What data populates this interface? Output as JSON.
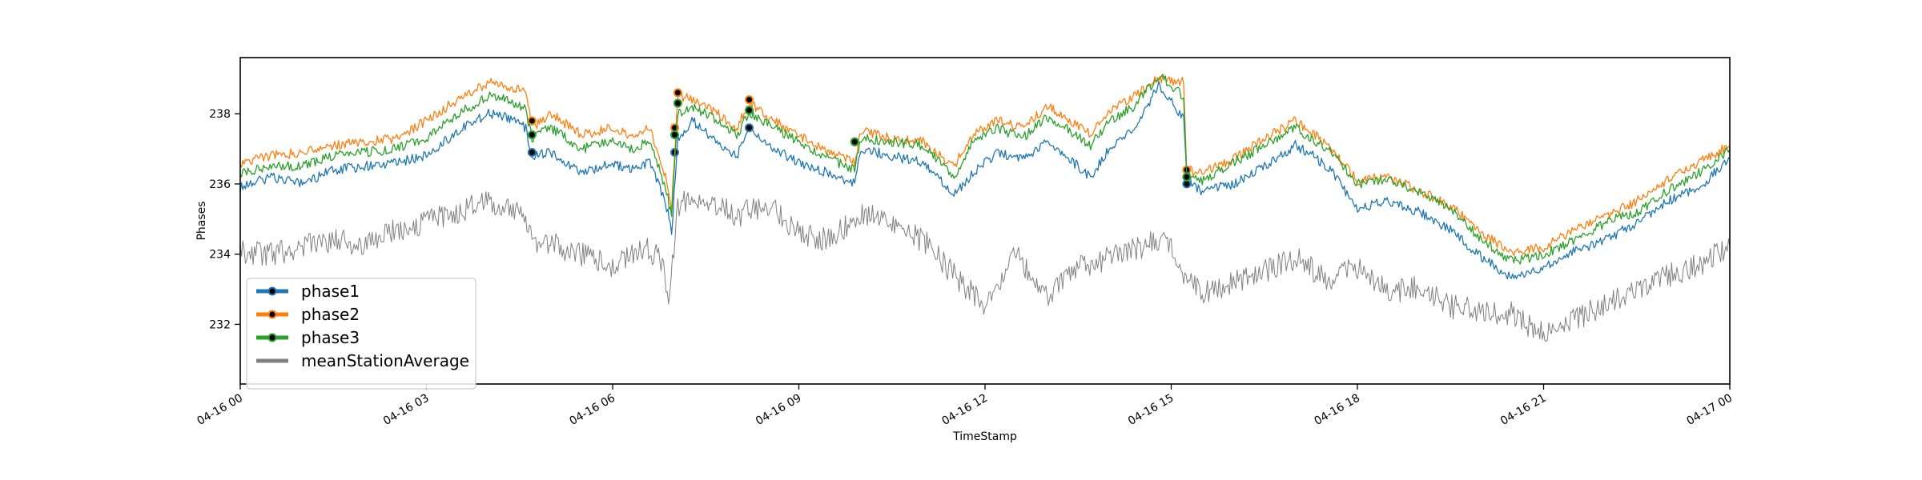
{
  "chart_data": {
    "type": "line",
    "title": "",
    "xlabel": "TimeStamp",
    "ylabel": "Phases",
    "x_range": [
      "2024-04-16 00:00",
      "2024-04-17 00:00"
    ],
    "ylim": [
      230.3,
      239.6
    ],
    "x_ticks": [
      "04-16 00",
      "04-16 03",
      "04-16 06",
      "04-16 09",
      "04-16 12",
      "04-16 15",
      "04-16 18",
      "04-16 21",
      "04-17 00"
    ],
    "y_ticks": [
      232,
      234,
      236,
      238
    ],
    "grid": false,
    "legend_position": "lower-left",
    "series": [
      {
        "name": "phase1",
        "color": "#1f77b4",
        "marker": "dot",
        "points": [
          [
            0.0,
            235.9
          ],
          [
            0.5,
            236.2
          ],
          [
            1.0,
            236.0
          ],
          [
            1.5,
            236.4
          ],
          [
            2.0,
            236.5
          ],
          [
            2.5,
            236.6
          ],
          [
            3.0,
            236.8
          ],
          [
            3.5,
            237.5
          ],
          [
            4.0,
            238.0
          ],
          [
            4.3,
            237.9
          ],
          [
            4.6,
            237.6
          ],
          [
            4.7,
            236.8
          ],
          [
            5.0,
            236.9
          ],
          [
            5.5,
            236.3
          ],
          [
            6.0,
            236.6
          ],
          [
            6.3,
            236.4
          ],
          [
            6.6,
            236.6
          ],
          [
            6.85,
            235.5
          ],
          [
            6.95,
            234.6
          ],
          [
            7.05,
            237.3
          ],
          [
            7.3,
            237.8
          ],
          [
            7.6,
            237.3
          ],
          [
            8.0,
            236.8
          ],
          [
            8.2,
            237.5
          ],
          [
            8.6,
            237.0
          ],
          [
            9.0,
            236.6
          ],
          [
            9.5,
            236.3
          ],
          [
            9.9,
            236.0
          ],
          [
            10.0,
            237.0
          ],
          [
            10.5,
            236.8
          ],
          [
            11.0,
            236.6
          ],
          [
            11.5,
            235.7
          ],
          [
            11.8,
            236.3
          ],
          [
            12.2,
            236.9
          ],
          [
            12.6,
            236.7
          ],
          [
            13.0,
            237.2
          ],
          [
            13.3,
            236.8
          ],
          [
            13.7,
            236.2
          ],
          [
            14.0,
            237.0
          ],
          [
            14.4,
            237.6
          ],
          [
            14.8,
            238.8
          ],
          [
            15.2,
            237.9
          ],
          [
            15.25,
            236.1
          ],
          [
            15.5,
            235.8
          ],
          [
            16.0,
            236.0
          ],
          [
            16.5,
            236.5
          ],
          [
            17.0,
            237.1
          ],
          [
            17.3,
            236.8
          ],
          [
            17.6,
            236.3
          ],
          [
            18.0,
            235.3
          ],
          [
            18.5,
            235.5
          ],
          [
            19.0,
            235.2
          ],
          [
            19.5,
            234.7
          ],
          [
            20.0,
            233.9
          ],
          [
            20.5,
            233.3
          ],
          [
            21.0,
            233.6
          ],
          [
            21.5,
            234.1
          ],
          [
            22.0,
            234.4
          ],
          [
            22.5,
            234.9
          ],
          [
            23.0,
            235.5
          ],
          [
            23.5,
            235.9
          ],
          [
            24.0,
            236.7
          ]
        ],
        "markers": [
          [
            4.7,
            236.9
          ],
          [
            7.0,
            236.9
          ],
          [
            8.2,
            237.6
          ],
          [
            9.9,
            237.2
          ],
          [
            15.25,
            236.0
          ]
        ]
      },
      {
        "name": "phase2",
        "color": "#ff7f0e",
        "marker": "dot",
        "points": [
          [
            0.0,
            236.6
          ],
          [
            0.5,
            236.8
          ],
          [
            1.0,
            236.9
          ],
          [
            1.5,
            237.1
          ],
          [
            2.0,
            237.2
          ],
          [
            2.5,
            237.3
          ],
          [
            3.0,
            237.8
          ],
          [
            3.5,
            238.4
          ],
          [
            4.0,
            238.9
          ],
          [
            4.3,
            238.8
          ],
          [
            4.6,
            238.6
          ],
          [
            4.7,
            237.6
          ],
          [
            5.0,
            238.0
          ],
          [
            5.5,
            237.4
          ],
          [
            6.0,
            237.6
          ],
          [
            6.3,
            237.4
          ],
          [
            6.6,
            237.6
          ],
          [
            6.85,
            236.2
          ],
          [
            6.95,
            235.3
          ],
          [
            7.05,
            238.5
          ],
          [
            7.3,
            238.4
          ],
          [
            7.6,
            238.1
          ],
          [
            8.0,
            237.6
          ],
          [
            8.2,
            238.3
          ],
          [
            8.6,
            237.8
          ],
          [
            9.0,
            237.4
          ],
          [
            9.5,
            236.9
          ],
          [
            9.9,
            236.6
          ],
          [
            10.0,
            237.5
          ],
          [
            10.5,
            237.3
          ],
          [
            11.0,
            237.2
          ],
          [
            11.5,
            236.5
          ],
          [
            11.8,
            237.4
          ],
          [
            12.2,
            237.8
          ],
          [
            12.6,
            237.6
          ],
          [
            13.0,
            238.2
          ],
          [
            13.3,
            237.9
          ],
          [
            13.7,
            237.4
          ],
          [
            14.0,
            238.1
          ],
          [
            14.4,
            238.5
          ],
          [
            14.8,
            239.0
          ],
          [
            15.2,
            238.9
          ],
          [
            15.25,
            236.4
          ],
          [
            15.5,
            236.3
          ],
          [
            16.0,
            236.7
          ],
          [
            16.5,
            237.3
          ],
          [
            17.0,
            237.8
          ],
          [
            17.3,
            237.4
          ],
          [
            17.6,
            237.0
          ],
          [
            18.0,
            236.1
          ],
          [
            18.5,
            236.2
          ],
          [
            19.0,
            235.8
          ],
          [
            19.5,
            235.4
          ],
          [
            20.0,
            234.6
          ],
          [
            20.5,
            234.0
          ],
          [
            21.0,
            234.2
          ],
          [
            21.5,
            234.7
          ],
          [
            22.0,
            235.1
          ],
          [
            22.5,
            235.5
          ],
          [
            23.0,
            236.1
          ],
          [
            23.5,
            236.6
          ],
          [
            24.0,
            237.1
          ]
        ],
        "markers": [
          [
            4.7,
            237.8
          ],
          [
            7.0,
            237.6
          ],
          [
            7.05,
            238.6
          ],
          [
            8.2,
            238.4
          ],
          [
            15.25,
            236.4
          ]
        ]
      },
      {
        "name": "phase3",
        "color": "#2ca02c",
        "marker": "dot",
        "points": [
          [
            0.0,
            236.3
          ],
          [
            0.5,
            236.5
          ],
          [
            1.0,
            236.5
          ],
          [
            1.5,
            236.8
          ],
          [
            2.0,
            236.9
          ],
          [
            2.5,
            237.0
          ],
          [
            3.0,
            237.3
          ],
          [
            3.5,
            238.0
          ],
          [
            4.0,
            238.5
          ],
          [
            4.3,
            238.4
          ],
          [
            4.6,
            238.1
          ],
          [
            4.7,
            237.3
          ],
          [
            5.0,
            237.6
          ],
          [
            5.5,
            237.0
          ],
          [
            6.0,
            237.2
          ],
          [
            6.3,
            237.0
          ],
          [
            6.6,
            237.2
          ],
          [
            6.85,
            235.9
          ],
          [
            6.95,
            235.1
          ],
          [
            7.05,
            238.0
          ],
          [
            7.3,
            238.2
          ],
          [
            7.6,
            237.9
          ],
          [
            8.0,
            237.4
          ],
          [
            8.2,
            238.0
          ],
          [
            8.6,
            237.6
          ],
          [
            9.0,
            237.2
          ],
          [
            9.5,
            236.7
          ],
          [
            9.9,
            236.4
          ],
          [
            10.0,
            237.3
          ],
          [
            10.5,
            237.2
          ],
          [
            11.0,
            237.1
          ],
          [
            11.5,
            236.2
          ],
          [
            11.8,
            237.2
          ],
          [
            12.2,
            237.6
          ],
          [
            12.6,
            237.3
          ],
          [
            13.0,
            237.9
          ],
          [
            13.3,
            237.6
          ],
          [
            13.7,
            237.1
          ],
          [
            14.0,
            237.8
          ],
          [
            14.4,
            238.2
          ],
          [
            14.8,
            239.1
          ],
          [
            15.2,
            238.5
          ],
          [
            15.25,
            236.3
          ],
          [
            15.5,
            236.1
          ],
          [
            16.0,
            236.6
          ],
          [
            16.5,
            237.1
          ],
          [
            17.0,
            237.6
          ],
          [
            17.3,
            237.2
          ],
          [
            17.6,
            236.9
          ],
          [
            18.0,
            236.0
          ],
          [
            18.5,
            236.1
          ],
          [
            19.0,
            235.8
          ],
          [
            19.5,
            235.3
          ],
          [
            20.0,
            234.4
          ],
          [
            20.5,
            233.8
          ],
          [
            21.0,
            234.0
          ],
          [
            21.5,
            234.4
          ],
          [
            22.0,
            234.9
          ],
          [
            22.5,
            235.2
          ],
          [
            23.0,
            235.8
          ],
          [
            23.5,
            236.3
          ],
          [
            24.0,
            237.0
          ]
        ],
        "markers": [
          [
            4.7,
            237.4
          ],
          [
            7.0,
            237.4
          ],
          [
            7.05,
            238.3
          ],
          [
            8.2,
            238.1
          ],
          [
            9.9,
            237.2
          ],
          [
            15.25,
            236.2
          ]
        ]
      },
      {
        "name": "meanStationAverage",
        "color": "#808080",
        "marker": "none",
        "points": [
          [
            0.0,
            234.1
          ],
          [
            0.5,
            234.0
          ],
          [
            1.0,
            234.2
          ],
          [
            1.5,
            234.4
          ],
          [
            2.0,
            234.3
          ],
          [
            2.5,
            234.7
          ],
          [
            3.0,
            234.9
          ],
          [
            3.5,
            235.2
          ],
          [
            4.0,
            235.5
          ],
          [
            4.5,
            235.3
          ],
          [
            4.7,
            234.4
          ],
          [
            5.0,
            234.3
          ],
          [
            5.5,
            234.0
          ],
          [
            6.0,
            233.6
          ],
          [
            6.5,
            234.2
          ],
          [
            6.8,
            233.8
          ],
          [
            6.9,
            232.5
          ],
          [
            7.05,
            235.4
          ],
          [
            7.5,
            235.6
          ],
          [
            8.0,
            235.1
          ],
          [
            8.5,
            235.4
          ],
          [
            9.0,
            234.6
          ],
          [
            9.5,
            234.4
          ],
          [
            10.0,
            235.2
          ],
          [
            10.5,
            234.9
          ],
          [
            11.0,
            234.4
          ],
          [
            11.5,
            233.4
          ],
          [
            12.0,
            232.5
          ],
          [
            12.5,
            234.0
          ],
          [
            13.0,
            232.8
          ],
          [
            13.5,
            233.6
          ],
          [
            14.0,
            233.9
          ],
          [
            14.5,
            234.2
          ],
          [
            14.9,
            234.5
          ],
          [
            15.2,
            233.3
          ],
          [
            15.5,
            232.9
          ],
          [
            16.0,
            233.2
          ],
          [
            16.5,
            233.5
          ],
          [
            17.0,
            233.9
          ],
          [
            17.5,
            233.3
          ],
          [
            18.0,
            233.6
          ],
          [
            18.5,
            232.9
          ],
          [
            19.0,
            233.1
          ],
          [
            19.5,
            232.5
          ],
          [
            20.0,
            232.4
          ],
          [
            20.5,
            232.3
          ],
          [
            21.0,
            231.7
          ],
          [
            21.5,
            232.1
          ],
          [
            22.0,
            232.6
          ],
          [
            22.5,
            233.0
          ],
          [
            23.0,
            233.4
          ],
          [
            23.5,
            233.7
          ],
          [
            24.0,
            234.2
          ]
        ],
        "markers": []
      }
    ]
  }
}
